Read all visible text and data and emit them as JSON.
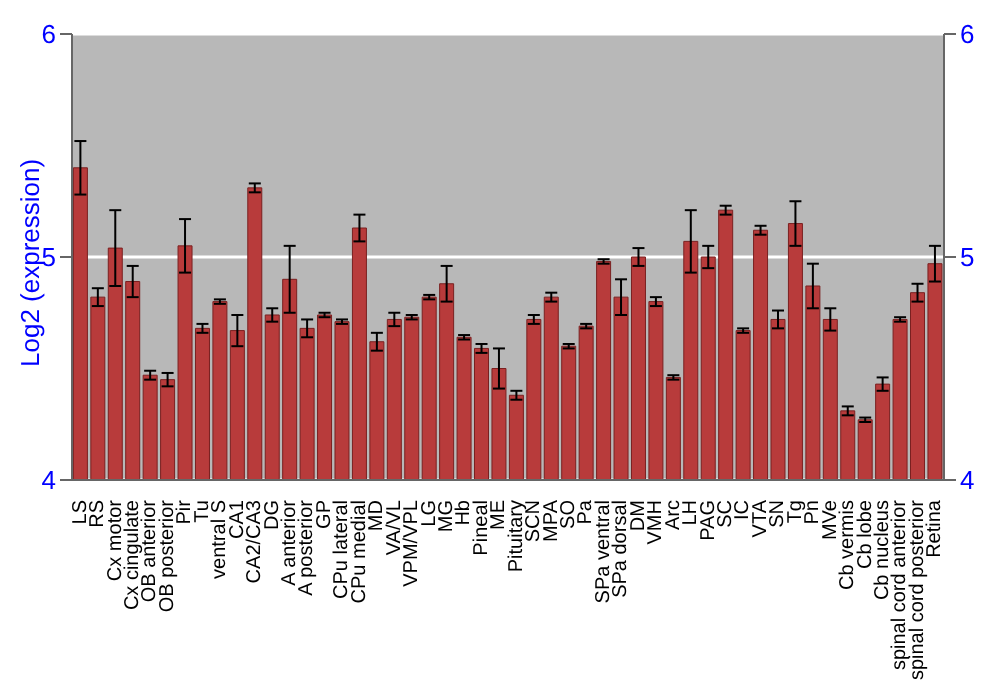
{
  "chart_data": {
    "type": "bar",
    "ylabel": "Log2 (expression)",
    "categories": [
      "LS",
      "RS",
      "Cx motor",
      "Cx cingulate",
      "OB anterior",
      "OB posterior",
      "Pir",
      "Tu",
      "ventral S",
      "CA1",
      "CA2/CA3",
      "DG",
      "A anterior",
      "A posterior",
      "GP",
      "CPu lateral",
      "CPu medial",
      "MD",
      "VA/VL",
      "VPM/VPL",
      "LG",
      "MG",
      "Hb",
      "Pineal",
      "ME",
      "Pituitary",
      "SCN",
      "MPA",
      "SO",
      "Pa",
      "SPa ventral",
      "SPa dorsal",
      "DM",
      "VMH",
      "Arc",
      "LH",
      "PAG",
      "SC",
      "IC",
      "VTA",
      "SN",
      "Tg",
      "Pn",
      "MVe",
      "Cb vermis",
      "Cb lobe",
      "Cb nucleus",
      "spinal cord anterior",
      "spinal cord posterior",
      "Retina"
    ],
    "values": [
      5.4,
      4.82,
      5.04,
      4.89,
      4.47,
      4.45,
      5.05,
      4.68,
      4.8,
      4.67,
      5.31,
      4.74,
      4.9,
      4.68,
      4.74,
      4.71,
      5.13,
      4.62,
      4.72,
      4.73,
      4.82,
      4.88,
      4.64,
      4.59,
      4.5,
      4.38,
      4.72,
      4.82,
      4.6,
      4.69,
      4.98,
      4.82,
      5.0,
      4.8,
      4.46,
      5.07,
      5.0,
      5.21,
      4.67,
      5.12,
      4.72,
      5.15,
      4.87,
      4.72,
      4.31,
      4.27,
      4.43,
      4.72,
      4.84,
      4.97
    ],
    "errors": [
      0.12,
      0.04,
      0.17,
      0.07,
      0.02,
      0.03,
      0.12,
      0.02,
      0.01,
      0.07,
      0.02,
      0.03,
      0.15,
      0.04,
      0.01,
      0.01,
      0.06,
      0.04,
      0.03,
      0.01,
      0.01,
      0.08,
      0.01,
      0.02,
      0.09,
      0.02,
      0.02,
      0.02,
      0.01,
      0.01,
      0.01,
      0.08,
      0.04,
      0.02,
      0.01,
      0.14,
      0.05,
      0.02,
      0.01,
      0.02,
      0.04,
      0.1,
      0.1,
      0.05,
      0.02,
      0.01,
      0.03,
      0.01,
      0.04,
      0.08
    ],
    "color": "#b83b3b",
    "ylim": [
      4,
      6
    ],
    "yticks": [
      4,
      5,
      6
    ],
    "y2lim": [
      4,
      6
    ],
    "y2ticks": [
      4,
      5,
      6
    ],
    "grid": "y"
  }
}
